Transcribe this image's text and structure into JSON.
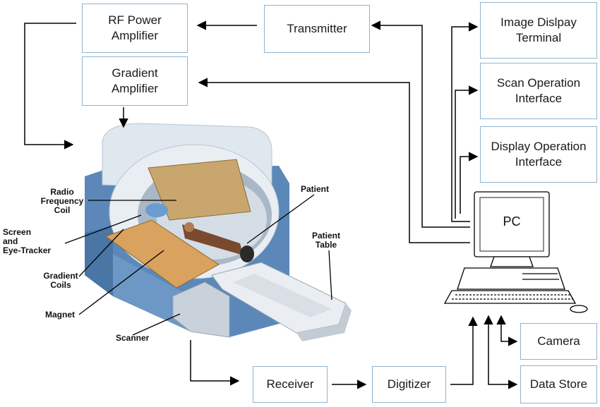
{
  "blocks": {
    "rf_power_amplifier": "RF Power\nAmplifier",
    "gradient_amplifier": "Gradient\nAmplifier",
    "transmitter": "Transmitter",
    "image_display_terminal": "Image Dislpay\nTerminal",
    "scan_operation_interface": "Scan Operation\nInterface",
    "display_operation_interface": "Display Operation\nInterface",
    "pc": "PC",
    "camera": "Camera",
    "data_store": "Data Store",
    "receiver": "Receiver",
    "digitizer": "Digitizer"
  },
  "scanner_labels": {
    "radio_frequency_coil": "Radio\nFrequency\nCoil",
    "screen_eye_tracker": "Screen\nand\nEye-Tracker",
    "gradient_coils": "Gradient\nCoils",
    "magnet": "Magnet",
    "scanner": "Scanner",
    "patient": "Patient",
    "patient_table": "Patient\nTable"
  },
  "colors": {
    "box_border": "#8fb3cf",
    "line": "#000000",
    "scanner_body": "#5b88b8",
    "scanner_shell": "#dfe7ef",
    "coil": "#c8a66e"
  }
}
